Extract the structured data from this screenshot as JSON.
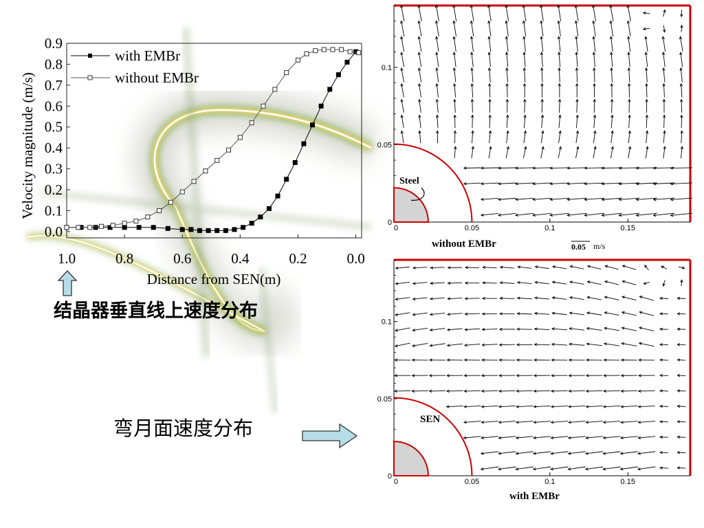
{
  "captions": {
    "line_chart": "结晶器垂直线上速度分布",
    "meniscus": "弯月面速度分布"
  },
  "chart_data": [
    {
      "type": "line",
      "title": "",
      "xlabel": "Distance from SEN(m)",
      "ylabel": "Velocity magnitude (m/s)",
      "xlim": [
        1.0,
        -0.02
      ],
      "ylim": [
        -0.03,
        0.9
      ],
      "x_reversed": true,
      "xticks": [
        "1.0",
        "0.8",
        "0.6",
        "0.4",
        "0.2",
        "0.0"
      ],
      "yticks": [
        "0.0",
        "0.1",
        "0.2",
        "0.3",
        "0.4",
        "0.5",
        "0.6",
        "0.7",
        "0.8",
        "0.9"
      ],
      "legend_position": "top-left",
      "series": [
        {
          "name": "with EMBr",
          "marker": "filled-square",
          "x": [
            1.0,
            0.95,
            0.9,
            0.85,
            0.8,
            0.75,
            0.7,
            0.65,
            0.6,
            0.57,
            0.54,
            0.51,
            0.48,
            0.45,
            0.42,
            0.39,
            0.36,
            0.33,
            0.3,
            0.27,
            0.24,
            0.21,
            0.18,
            0.15,
            0.12,
            0.09,
            0.06,
            0.03,
            0.0
          ],
          "values": [
            0.02,
            0.02,
            0.02,
            0.02,
            0.02,
            0.02,
            0.02,
            0.015,
            0.01,
            0.01,
            0.005,
            0.005,
            0.005,
            0.005,
            0.01,
            0.02,
            0.04,
            0.07,
            0.11,
            0.17,
            0.25,
            0.33,
            0.42,
            0.51,
            0.6,
            0.68,
            0.75,
            0.81,
            0.86
          ]
        },
        {
          "name": "without EMBr",
          "marker": "open-square",
          "x": [
            1.0,
            0.96,
            0.92,
            0.88,
            0.84,
            0.8,
            0.76,
            0.72,
            0.68,
            0.64,
            0.6,
            0.56,
            0.52,
            0.48,
            0.44,
            0.4,
            0.36,
            0.32,
            0.28,
            0.24,
            0.2,
            0.17,
            0.14,
            0.11,
            0.08,
            0.05,
            0.02,
            -0.01
          ],
          "values": [
            0.02,
            0.02,
            0.02,
            0.025,
            0.03,
            0.04,
            0.05,
            0.07,
            0.1,
            0.14,
            0.19,
            0.24,
            0.29,
            0.34,
            0.39,
            0.45,
            0.52,
            0.6,
            0.68,
            0.76,
            0.82,
            0.85,
            0.865,
            0.87,
            0.87,
            0.87,
            0.86,
            0.855
          ]
        }
      ]
    },
    {
      "type": "vector-field",
      "title": "",
      "label": "without EMBr",
      "xlim": [
        0,
        0.19
      ],
      "ylim": [
        0,
        0.14
      ],
      "xticks": [
        "0",
        "0.05",
        "0.1",
        "0.15"
      ],
      "yticks": [
        "0",
        "0.05",
        "0.1"
      ],
      "annotation": "Steel",
      "scale_label": "0.05",
      "scale_unit": "m/s",
      "circle_outer_r": 0.05,
      "circle_inner_r": 0.022,
      "border_color": "#cc0000"
    },
    {
      "type": "vector-field",
      "title": "",
      "label": "with EMBr",
      "xlim": [
        0,
        0.19
      ],
      "ylim": [
        0,
        0.14
      ],
      "xticks": [
        "0",
        "0.05",
        "0.1",
        "0.15"
      ],
      "yticks": [
        "0",
        "0.05",
        "0.1"
      ],
      "annotation": "SEN",
      "circle_outer_r": 0.05,
      "circle_inner_r": 0.022,
      "border_color": "#cc0000"
    }
  ],
  "colors": {
    "axis_red": "#cc0000",
    "arrow_fill": "#b7dde8",
    "glow": "#e8d070"
  },
  "icons": {
    "up_arrow": "up-arrow-icon",
    "right_arrow": "right-arrow-icon"
  }
}
